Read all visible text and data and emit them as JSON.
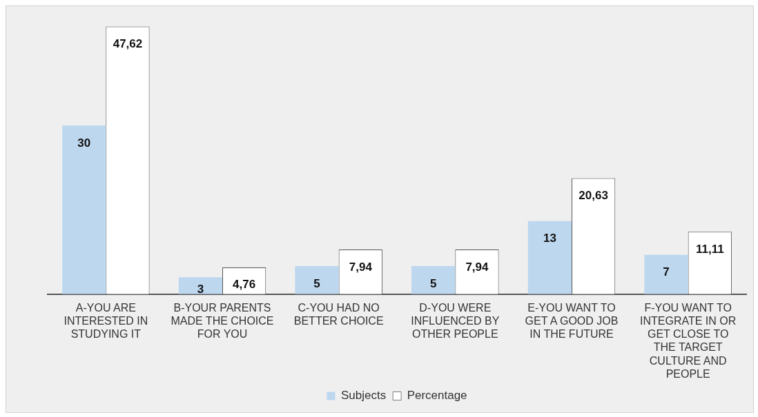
{
  "chart_data": {
    "type": "bar",
    "categories": [
      "A-YOU ARE INTERESTED IN STUDYING IT",
      "B-YOUR PARENTS MADE THE CHOICE FOR YOU",
      "C-YOU HAD NO BETTER CHOICE",
      "D-YOU WERE INFLUENCED BY OTHER PEOPLE",
      "E-YOU WANT TO GET A GOOD JOB IN THE FUTURE",
      "F-YOU WANT TO INTEGRATE IN OR GET CLOSE TO THE TARGET CULTURE AND PEOPLE"
    ],
    "series": [
      {
        "name": "Subjects",
        "color": "#bdd7ee",
        "values": [
          30,
          3,
          5,
          5,
          13,
          7
        ],
        "value_labels": [
          "30",
          "3",
          "5",
          "5",
          "13",
          "7"
        ]
      },
      {
        "name": "Percentage",
        "color": "#ffffff",
        "values": [
          47.62,
          4.76,
          7.94,
          7.94,
          20.63,
          11.11
        ],
        "value_labels": [
          "47,62",
          "4,76",
          "7,94",
          "7,94",
          "20,63",
          "11,11"
        ]
      }
    ],
    "tick_labels": "x",
    "legend": "bottom"
  }
}
